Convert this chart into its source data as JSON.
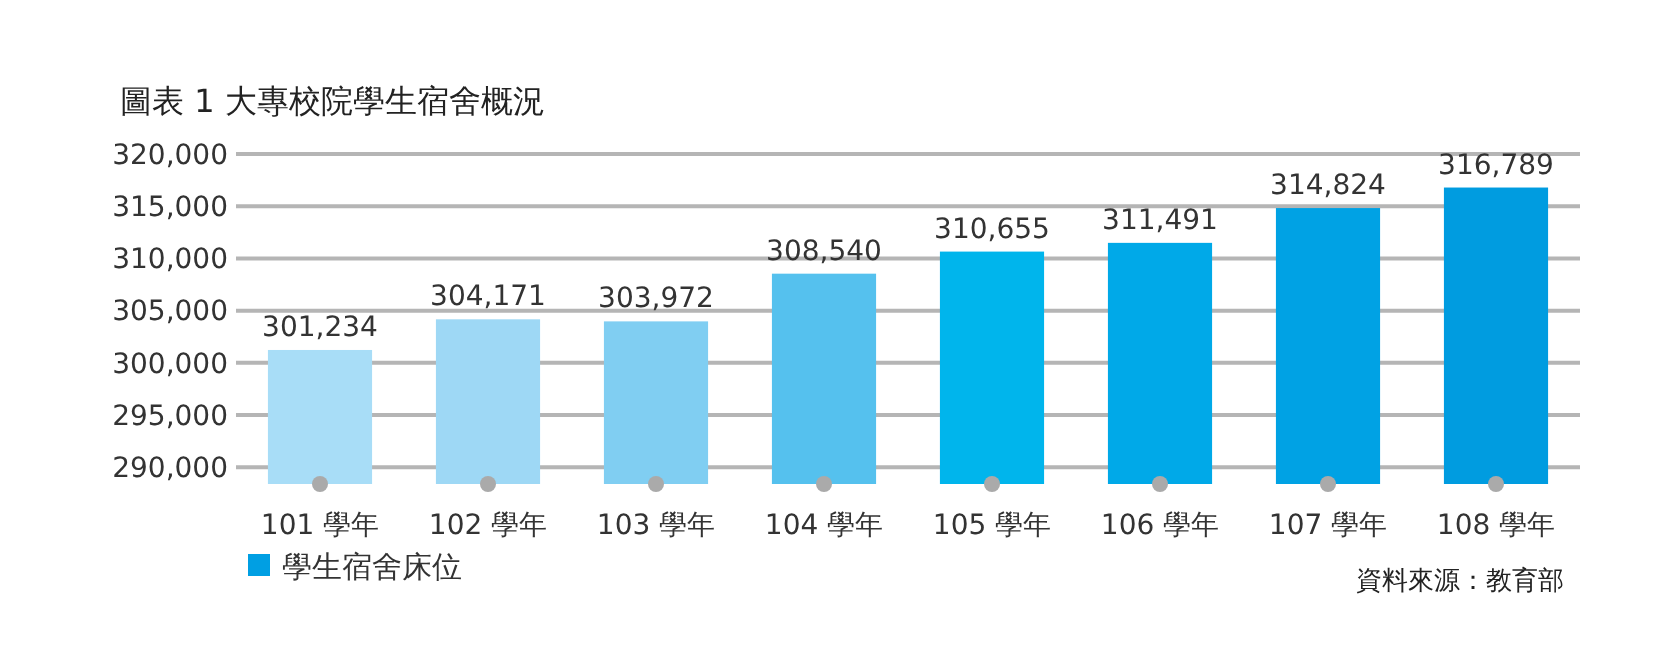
{
  "chart_data": {
    "type": "bar",
    "title": "圖表 1 大專校院學生宿舍概況",
    "categories": [
      "101 學年",
      "102 學年",
      "103 學年",
      "104 學年",
      "105 學年",
      "106 學年",
      "107 學年",
      "108 學年"
    ],
    "series": [
      {
        "name": "學生宿舍床位",
        "color": "#009fe3",
        "colors": [
          "#a8ddf7",
          "#9ed8f5",
          "#80cef2",
          "#55c1ee",
          "#00b5ec",
          "#00a9e8",
          "#00a2e4",
          "#009ce0"
        ],
        "values": [
          301234,
          304171,
          303972,
          308540,
          310655,
          311491,
          314824,
          316789
        ],
        "value_labels": [
          "301,234",
          "304,171",
          "303,972",
          "308,540",
          "310,655",
          "311,491",
          "314,824",
          "316,789"
        ]
      }
    ],
    "ylim": [
      288400,
      320000
    ],
    "yticks": [
      {
        "value": 290000,
        "label": "290,000"
      },
      {
        "value": 295000,
        "label": "295,000"
      },
      {
        "value": 300000,
        "label": "300,000"
      },
      {
        "value": 305000,
        "label": "305,000"
      },
      {
        "value": 310000,
        "label": "310,000"
      },
      {
        "value": 315000,
        "label": "315,000"
      },
      {
        "value": 320000,
        "label": "320,000"
      }
    ],
    "grid": "y",
    "legend": "bottom left",
    "annotations": [
      "資料來源：教育部"
    ]
  }
}
